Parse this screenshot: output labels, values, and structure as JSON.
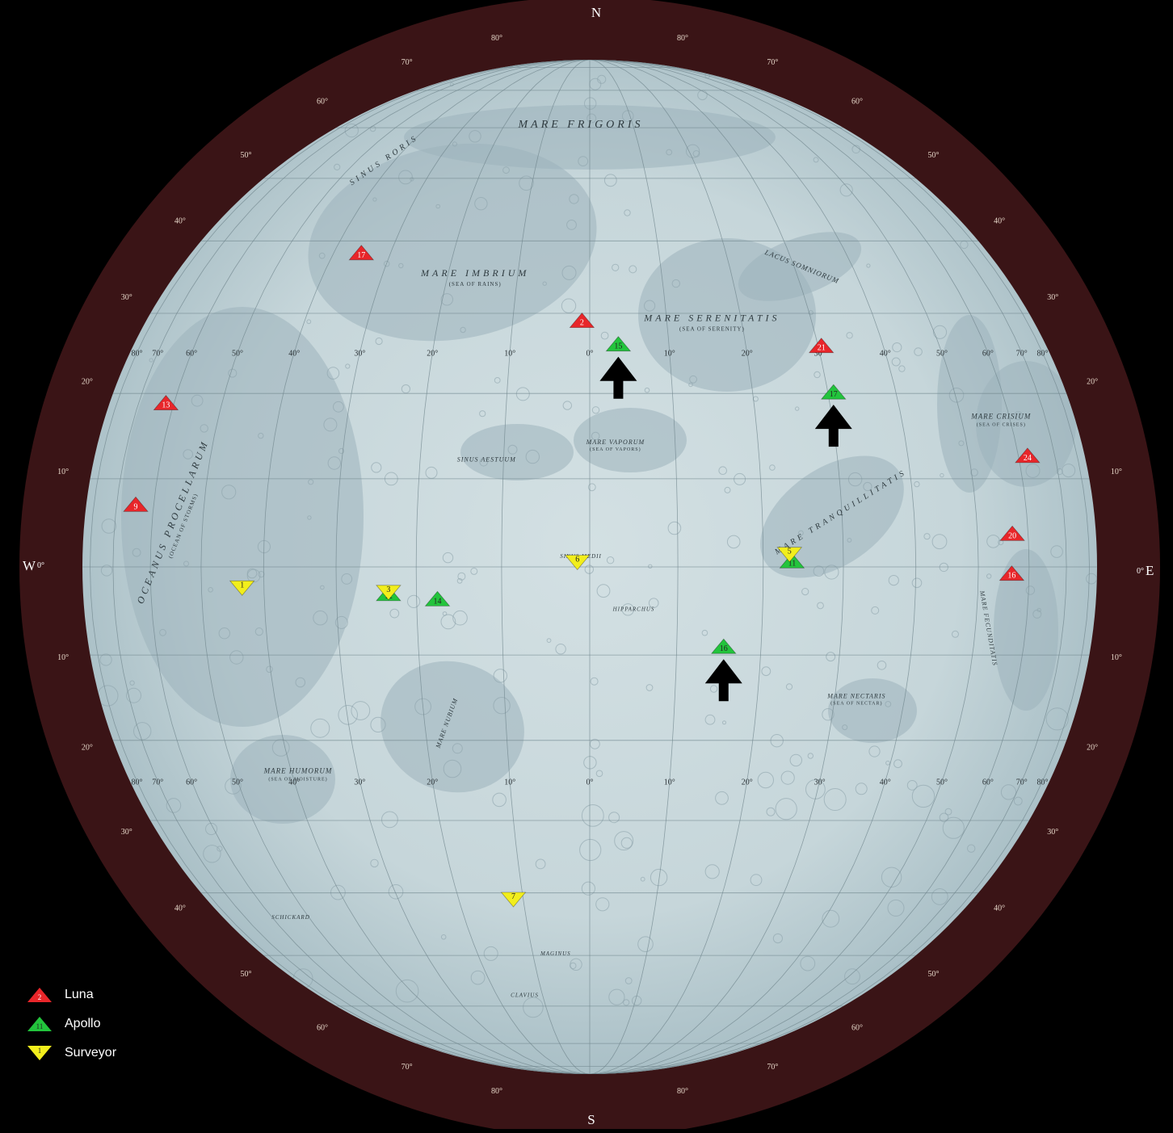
{
  "compass": {
    "north": "N",
    "south": "S",
    "west": "W",
    "east": "E",
    "west_zero": "0°",
    "east_zero": "0°"
  },
  "rim_latitudes": {
    "top": [
      "80°",
      "70°",
      "60°",
      "50°",
      "40°",
      "30°",
      "20°",
      "10°"
    ],
    "top_right": [
      "80°",
      "70°",
      "60°",
      "50°",
      "40°",
      "30°",
      "20°",
      "10°"
    ],
    "bottom": [
      "80°",
      "70°",
      "60°",
      "50°",
      "40°",
      "30°",
      "20°",
      "10°"
    ],
    "bottom_right": [
      "80°",
      "70°",
      "60°",
      "50°",
      "40°",
      "30°",
      "20°",
      "10°"
    ]
  },
  "longitude_row_north": [
    "80°",
    "70°",
    "60°",
    "50°",
    "40°",
    "30°",
    "20°",
    "10°",
    "0°",
    "10°",
    "20°",
    "30°",
    "40°",
    "50°",
    "60°",
    "70°",
    "80°"
  ],
  "longitude_row_south": [
    "80°",
    "70°",
    "60°",
    "50°",
    "40°",
    "30°",
    "20°",
    "10°",
    "0°",
    "10°",
    "20°",
    "30°",
    "40°",
    "50°",
    "60°",
    "70°",
    "80°"
  ],
  "features": [
    {
      "name": "MARE FRIGORIS",
      "sub": ""
    },
    {
      "name": "MARE IMBRIUM",
      "sub": "SEA OF RAINS"
    },
    {
      "name": "MARE SERENITATIS",
      "sub": "SEA OF SERENITY"
    },
    {
      "name": "MARE CRISIUM",
      "sub": "SEA OF CRISES"
    },
    {
      "name": "MARE TRANQUILLITATIS",
      "sub": ""
    },
    {
      "name": "MARE VAPORUM",
      "sub": "SEA OF VAPORS"
    },
    {
      "name": "SINUS AESTUUM",
      "sub": ""
    },
    {
      "name": "MARE NECTARIS",
      "sub": "SEA OF NECTAR"
    },
    {
      "name": "MARE HUMORUM",
      "sub": "SEA OF MOISTURE"
    },
    {
      "name": "OCEANUS PROCELLARUM",
      "sub": "OCEAN OF STORMS"
    },
    {
      "name": "MARE NUBIUM",
      "sub": ""
    },
    {
      "name": "MARE FECUNDITATIS",
      "sub": ""
    },
    {
      "name": "LACUS SOMNIORUM",
      "sub": ""
    },
    {
      "name": "SINUS RORIS",
      "sub": ""
    },
    {
      "name": "SINUS MEDII",
      "sub": ""
    },
    {
      "name": "HIPPARCHUS",
      "sub": ""
    },
    {
      "name": "CLAVIUS",
      "sub": ""
    },
    {
      "name": "SCHICKARD",
      "sub": ""
    },
    {
      "name": "MAGINUS",
      "sub": ""
    }
  ],
  "sites": [
    {
      "program": "luna",
      "label": "2",
      "lon": -1,
      "lat": 29.1
    },
    {
      "program": "luna",
      "label": "17",
      "lon": -35,
      "lat": 38.3
    },
    {
      "program": "luna",
      "label": "13",
      "lon": -62,
      "lat": 18.9
    },
    {
      "program": "luna",
      "label": "9",
      "lon": -64.4,
      "lat": 7.1
    },
    {
      "program": "luna",
      "label": "21",
      "lon": 30.5,
      "lat": 25.9
    },
    {
      "program": "luna",
      "label": "24",
      "lon": 62.2,
      "lat": 12.7
    },
    {
      "program": "luna",
      "label": "20",
      "lon": 56.6,
      "lat": 3.8
    },
    {
      "program": "luna",
      "label": "16",
      "lon": 56.3,
      "lat": -0.7
    },
    {
      "program": "apollo",
      "label": "15",
      "lon": 3.6,
      "lat": 26.1
    },
    {
      "program": "apollo",
      "label": "17",
      "lon": 30.8,
      "lat": 20.2
    },
    {
      "program": "apollo",
      "label": "11",
      "lon": 23.5,
      "lat": 0.7
    },
    {
      "program": "apollo",
      "label": "12",
      "lon": -23.4,
      "lat": -3.0
    },
    {
      "program": "apollo",
      "label": "14",
      "lon": -17.5,
      "lat": -3.6
    },
    {
      "program": "apollo",
      "label": "16",
      "lon": 15.5,
      "lat": -9.0
    },
    {
      "program": "surveyor",
      "label": "1",
      "lon": -43.3,
      "lat": -2.4
    },
    {
      "program": "surveyor",
      "label": "3",
      "lon": -23.4,
      "lat": -2.9
    },
    {
      "program": "surveyor",
      "label": "5",
      "lon": 23.2,
      "lat": 1.4
    },
    {
      "program": "surveyor",
      "label": "6",
      "lon": -1.4,
      "lat": 0.5
    },
    {
      "program": "surveyor",
      "label": "7",
      "lon": -11.5,
      "lat": -41.0
    }
  ],
  "arrows": [
    {
      "lon": 3.6,
      "lat": 26.1
    },
    {
      "lon": 30.8,
      "lat": 20.2
    },
    {
      "lon": 15.5,
      "lat": -9.0
    }
  ],
  "legend": [
    {
      "program": "luna",
      "label": "Luna",
      "sample": "2"
    },
    {
      "program": "apollo",
      "label": "Apollo",
      "sample": "11"
    },
    {
      "program": "surveyor",
      "label": "Surveyor",
      "sample": "1"
    }
  ],
  "colors": {
    "luna": "#e8262a",
    "apollo": "#22c43c",
    "surveyor": "#f2ee1c",
    "surface": "#c9d8dc",
    "mare": "#9db2bb",
    "rim": "#3a1416",
    "background": "#000000"
  }
}
